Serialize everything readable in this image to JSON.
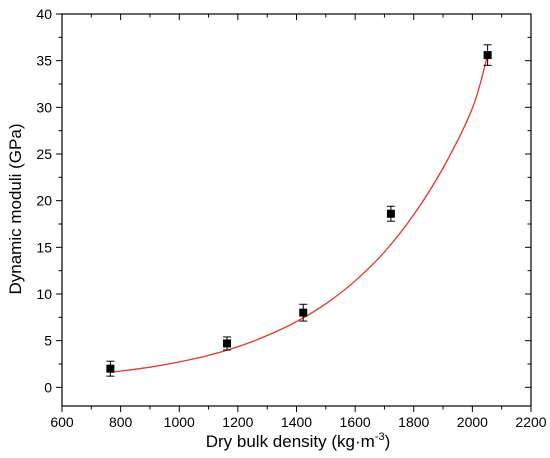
{
  "chart_data": {
    "type": "scatter",
    "xlabel": "Dry bulk density (kg·m",
    "xlabel_sup": "-3",
    "xlabel_close": ")",
    "ylabel": "Dynamic moduli (GPa)",
    "xlim": [
      600,
      2200
    ],
    "ylim": [
      -2,
      40
    ],
    "x_ticks": [
      600,
      800,
      1000,
      1200,
      1400,
      1600,
      1800,
      2000,
      2200
    ],
    "y_ticks": [
      0,
      5,
      10,
      15,
      20,
      25,
      30,
      35,
      40
    ],
    "grid": false,
    "legend": "none",
    "series": [
      {
        "points": [
          {
            "x": 765,
            "y": 2.0,
            "err": 0.8
          },
          {
            "x": 1163,
            "y": 4.7,
            "err": 0.7
          },
          {
            "x": 1423,
            "y": 8.0,
            "err": 0.9
          },
          {
            "x": 1722,
            "y": 18.6,
            "err": 0.8
          },
          {
            "x": 2052,
            "y": 35.6,
            "err": 1.1
          }
        ],
        "marker_color": "#000000"
      }
    ],
    "fit": {
      "form": "exponential",
      "x": [
        765,
        900,
        1000,
        1100,
        1200,
        1300,
        1400,
        1500,
        1600,
        1700,
        1800,
        1900,
        2000,
        2052
      ],
      "y": [
        1.6,
        2.16,
        2.73,
        3.43,
        4.35,
        5.55,
        7.05,
        8.95,
        11.4,
        14.5,
        18.5,
        23.5,
        29.9,
        35.6
      ],
      "color": "#e8322a"
    }
  }
}
